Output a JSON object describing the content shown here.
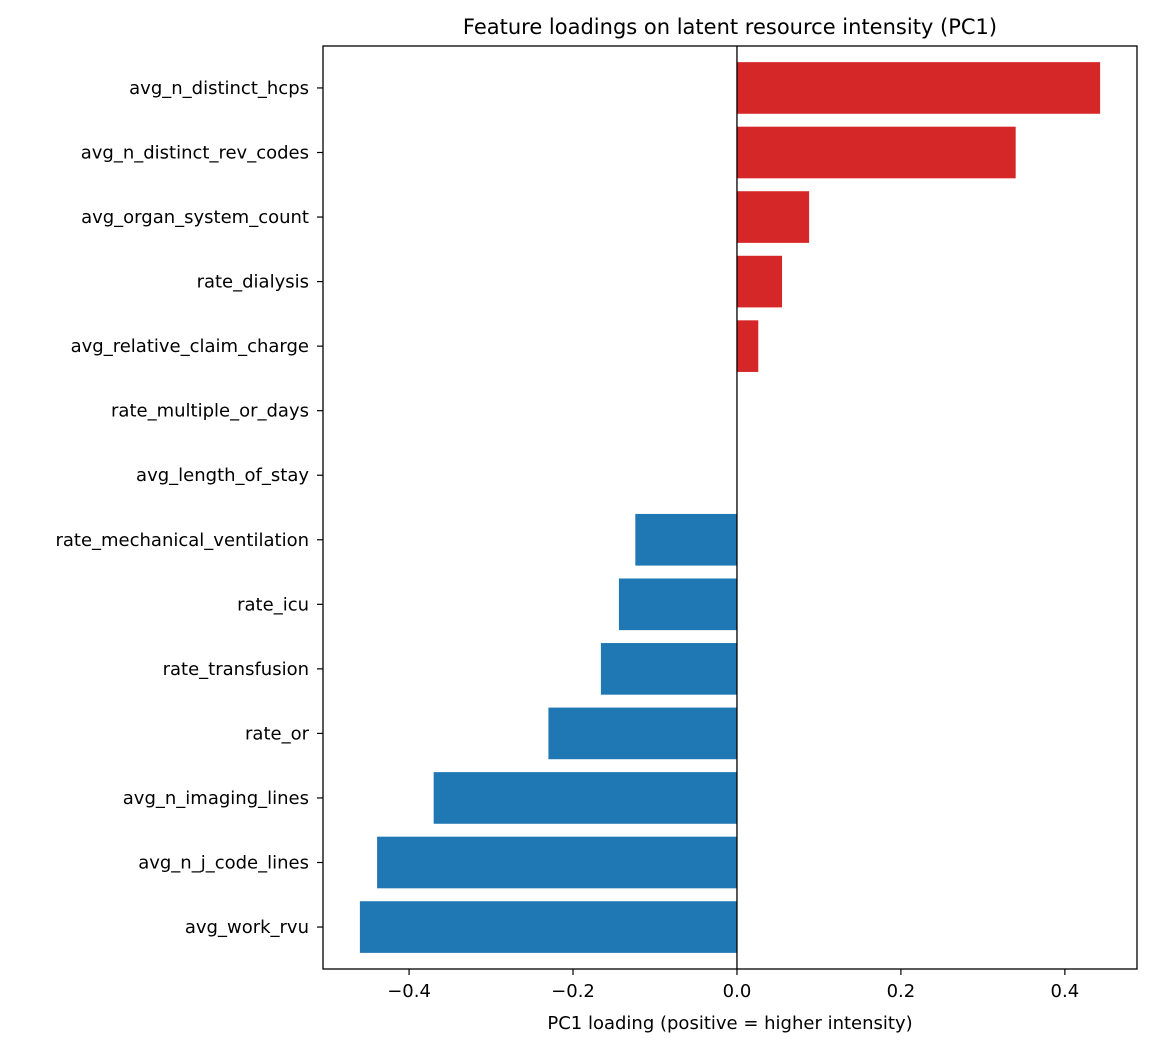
{
  "chart_data": {
    "type": "bar",
    "orientation": "horizontal",
    "title": "Feature loadings on latent resource intensity (PC1)",
    "xlabel": "PC1 loading (positive = higher intensity)",
    "ylabel": "",
    "xlim": [
      -0.505,
      0.488
    ],
    "xticks": [
      -0.4,
      -0.2,
      0.0,
      0.2,
      0.4
    ],
    "xtick_labels": [
      "−0.4",
      "−0.2",
      "0.0",
      "0.2",
      "0.4"
    ],
    "grid": false,
    "zero_line": true,
    "colors": {
      "positive": "#d62728",
      "negative": "#1f77b4"
    },
    "categories": [
      "avg_n_distinct_hcps",
      "avg_n_distinct_rev_codes",
      "avg_organ_system_count",
      "rate_dialysis",
      "avg_relative_claim_charge",
      "rate_multiple_or_days",
      "avg_length_of_stay",
      "rate_mechanical_ventilation",
      "rate_icu",
      "rate_transfusion",
      "rate_or",
      "avg_n_imaging_lines",
      "avg_n_j_code_lines",
      "avg_work_rvu"
    ],
    "values": [
      0.443,
      0.34,
      0.088,
      0.055,
      0.026,
      0.0,
      0.0,
      -0.124,
      -0.144,
      -0.166,
      -0.23,
      -0.37,
      -0.439,
      -0.46
    ]
  }
}
